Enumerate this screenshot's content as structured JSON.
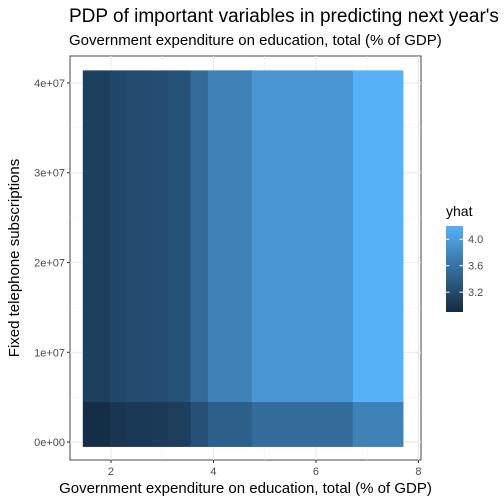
{
  "chart_data": {
    "type": "heatmap",
    "title": "PDP of important variables in predicting next year's",
    "subtitle": "Government expenditure on education, total (% of GDP)",
    "xlabel": "Government expenditure on education, total (% of GDP)",
    "ylabel": "Fixed telephone subscriptions",
    "x_edges": [
      1.45,
      1.98,
      2.29,
      2.79,
      3.12,
      3.55,
      3.89,
      4.75,
      6.72,
      7.7
    ],
    "y_edges": [
      -500000,
      4500000,
      41400000
    ],
    "xlim": [
      1.2,
      8.05
    ],
    "ylim": [
      -2000000,
      43000000
    ],
    "x_ticks": [
      2,
      4,
      6,
      8
    ],
    "x_tick_labels": [
      "2",
      "4",
      "6",
      "8"
    ],
    "y_ticks": [
      0,
      10000000,
      20000000,
      30000000,
      40000000
    ],
    "y_tick_labels": [
      "0e+00",
      "1e+07",
      "2e+07",
      "3e+07",
      "4e+07"
    ],
    "values": [
      [
        2.93,
        3.0,
        3.04,
        3.06,
        3.09,
        3.26,
        3.41,
        3.54,
        3.74
      ],
      [
        3.1,
        3.17,
        3.21,
        3.23,
        3.28,
        3.52,
        3.73,
        3.94,
        4.2
      ]
    ],
    "legend": {
      "title": "yhat",
      "position": "right",
      "range": [
        2.9,
        4.2
      ],
      "ticks": [
        3.2,
        3.6,
        4.0
      ],
      "tick_labels": [
        "3.2",
        "3.6",
        "4.0"
      ]
    },
    "colors": {
      "low": "#132b43",
      "high": "#56b1f7"
    },
    "grid": true
  }
}
